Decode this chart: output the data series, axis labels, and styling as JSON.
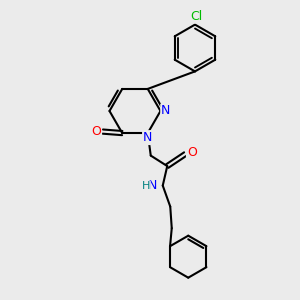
{
  "background_color": "#ebebeb",
  "atom_color_N": "#0000ff",
  "atom_color_O": "#ff0000",
  "atom_color_Cl": "#00bb00",
  "atom_color_C": "#000000",
  "atom_color_H": "#008080",
  "bond_color": "#000000",
  "bond_width": 1.5,
  "figsize": [
    3.0,
    3.0
  ],
  "dpi": 100,
  "xlim": [
    0,
    10
  ],
  "ylim": [
    0,
    10
  ]
}
